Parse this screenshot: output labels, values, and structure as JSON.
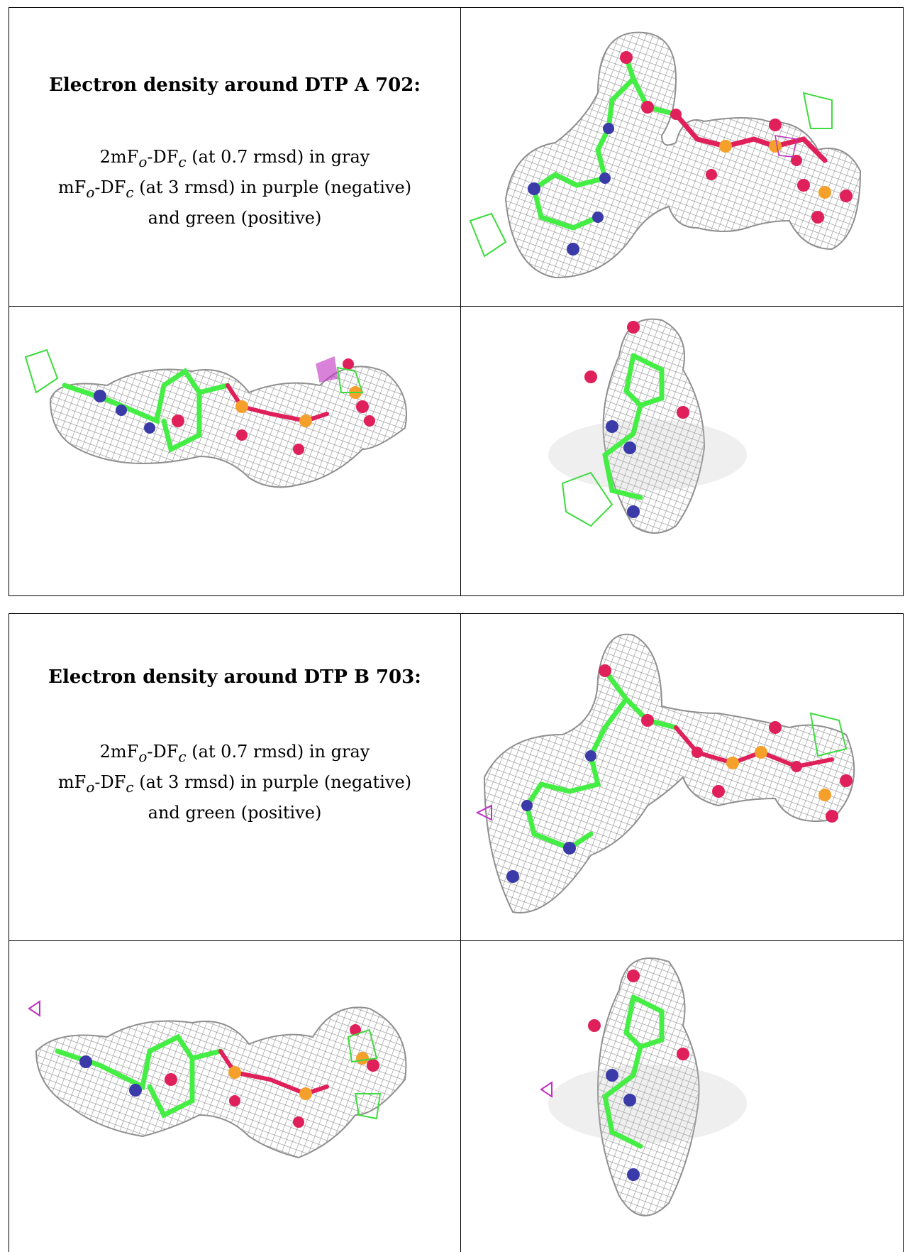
{
  "panels": [
    {
      "title": "Electron density around DTP A 702:",
      "line1": {
        "prefix": "2mF",
        "sub1": "o",
        "mid": "-DF",
        "sub2": "c",
        "suffix": " (at 0.7 rmsd) in gray"
      },
      "line2": {
        "prefix": "mF",
        "sub1": "o",
        "mid": "-DF",
        "sub2": "c",
        "suffix": " (at 3 rmsd) in purple (negative)"
      },
      "line3": "and green (positive)"
    },
    {
      "title": "Electron density around DTP B 703:",
      "line1": {
        "prefix": "2mF",
        "sub1": "o",
        "mid": "-DF",
        "sub2": "c",
        "suffix": " (at 0.7 rmsd) in gray"
      },
      "line2": {
        "prefix": "mF",
        "sub1": "o",
        "mid": "-DF",
        "sub2": "c",
        "suffix": " (at 3 rmsd) in purple (negative)"
      },
      "line3": "and green (positive)"
    }
  ],
  "colors": {
    "mesh_gray": "#8f8f8f",
    "carbon_green": "#44ee44",
    "nitrogen_blue": "#3a3aa8",
    "oxygen_red": "#e0205a",
    "phosphorus_orange": "#f5a02a",
    "positive_green": "#3ddc3d",
    "negative_purple": "#c030c0"
  }
}
